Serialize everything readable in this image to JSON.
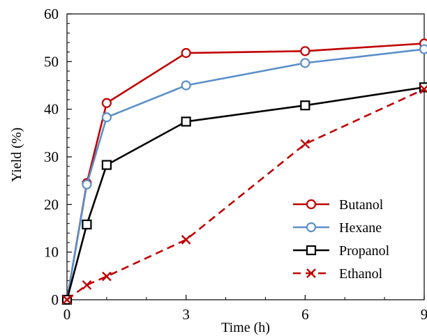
{
  "chart_data": {
    "type": "line",
    "xlabel": "Time (h)",
    "ylabel": "Yield (%)",
    "xlim": [
      0,
      9
    ],
    "ylim": [
      0,
      60
    ],
    "xticks": [
      0,
      3,
      6,
      9
    ],
    "yticks": [
      0,
      10,
      20,
      30,
      40,
      50,
      60
    ],
    "grid": false,
    "legend_position": "bottom-right",
    "series": [
      {
        "name": "Butanol",
        "color": "#c00000",
        "marker": "circle",
        "line": "solid",
        "x": [
          0,
          0.5,
          1,
          3,
          6,
          9
        ],
        "y": [
          0,
          24.5,
          41.3,
          51.8,
          52.2,
          53.8
        ]
      },
      {
        "name": "Hexane",
        "color": "#5b8fc9",
        "marker": "circle",
        "line": "solid",
        "x": [
          0,
          0.5,
          1,
          3,
          6,
          9
        ],
        "y": [
          0,
          24.2,
          38.3,
          45.0,
          49.7,
          52.6
        ]
      },
      {
        "name": "Propanol",
        "color": "#000000",
        "marker": "square",
        "line": "solid",
        "x": [
          0,
          0.5,
          1,
          3,
          6,
          9
        ],
        "y": [
          0,
          15.8,
          28.3,
          37.4,
          40.8,
          44.6
        ]
      },
      {
        "name": "Ethanol",
        "color": "#c00000",
        "marker": "x",
        "line": "dashed",
        "x": [
          0,
          0.5,
          1,
          3,
          6,
          9
        ],
        "y": [
          0,
          3.1,
          4.9,
          12.6,
          32.7,
          44.2
        ]
      }
    ]
  }
}
